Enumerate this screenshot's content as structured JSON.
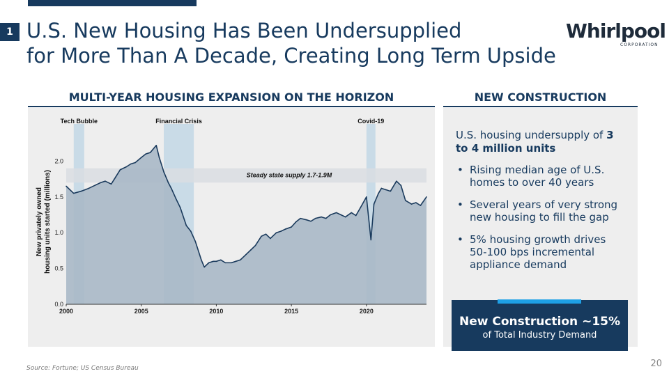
{
  "slide": {
    "number": "1",
    "title_line1": "U.S. New Housing Has Been Undersupplied",
    "title_line2": "for More Than A Decade, Creating Long Term Upside",
    "logo_text": "Whirlpool",
    "logo_subtext": "CORPORATION",
    "page_number": "20",
    "source": "Source: Fortune; US Census Bureau"
  },
  "left_panel": {
    "heading": "MULTI-YEAR HOUSING EXPANSION ON THE HORIZON"
  },
  "right_panel": {
    "heading": "NEW CONSTRUCTION",
    "intro_prefix": "U.S. housing undersupply of ",
    "intro_bold": "3 to 4 million units",
    "bullets": [
      "Rising median age of U.S. homes to over 40 years",
      "Several years of very strong new housing to fill the gap",
      "5% housing growth drives 50-100 bps incremental appliance demand"
    ],
    "callout_main": "New Construction ~15%",
    "callout_sub": "of Total Industry Demand"
  },
  "colors": {
    "navy": "#173a5e",
    "accent": "#1ea0e6",
    "area_fill": "#a9b8c7",
    "line": "#1a3a5c",
    "band": "#c9dbe7"
  },
  "chart_data": {
    "type": "area",
    "title": "MULTI-YEAR HOUSING EXPANSION ON THE HORIZON",
    "xlabel": "",
    "ylabel": "New privately owned housing units started (millions)",
    "xlim": [
      2000,
      2024
    ],
    "ylim": [
      0.0,
      2.5
    ],
    "xticks": [
      "2000",
      "2005",
      "2010",
      "2015",
      "2020"
    ],
    "yticks": [
      "0.0",
      "0.5",
      "1.0",
      "1.5",
      "2.0"
    ],
    "shaded_periods": [
      {
        "label": "Tech Bubble",
        "start": 2000.5,
        "end": 2001.2
      },
      {
        "label": "Financial Crisis",
        "start": 2006.5,
        "end": 2008.5
      },
      {
        "label": "Covid-19",
        "start": 2020.0,
        "end": 2020.6
      }
    ],
    "reference_band": {
      "label": "Steady state supply 1.7-1.9M",
      "low": 1.7,
      "high": 1.9
    },
    "series": [
      {
        "name": "Housing starts",
        "x": [
          2000.0,
          2000.5,
          2001.0,
          2001.5,
          2002.0,
          2002.3,
          2002.6,
          2003.0,
          2003.3,
          2003.6,
          2004.0,
          2004.3,
          2004.6,
          2005.0,
          2005.3,
          2005.6,
          2006.0,
          2006.2,
          2006.5,
          2006.8,
          2007.0,
          2007.3,
          2007.6,
          2008.0,
          2008.3,
          2008.6,
          2009.0,
          2009.2,
          2009.5,
          2009.8,
          2010.0,
          2010.3,
          2010.6,
          2011.0,
          2011.3,
          2011.6,
          2012.0,
          2012.3,
          2012.6,
          2013.0,
          2013.3,
          2013.6,
          2014.0,
          2014.3,
          2014.6,
          2015.0,
          2015.3,
          2015.6,
          2016.0,
          2016.3,
          2016.6,
          2017.0,
          2017.3,
          2017.6,
          2018.0,
          2018.3,
          2018.6,
          2019.0,
          2019.3,
          2019.6,
          2020.0,
          2020.3,
          2020.5,
          2020.8,
          2021.0,
          2021.3,
          2021.6,
          2022.0,
          2022.3,
          2022.6,
          2023.0,
          2023.3,
          2023.6,
          2024.0
        ],
        "values": [
          1.65,
          1.55,
          1.58,
          1.62,
          1.67,
          1.7,
          1.72,
          1.68,
          1.78,
          1.88,
          1.92,
          1.96,
          1.98,
          2.05,
          2.1,
          2.12,
          2.22,
          2.05,
          1.85,
          1.7,
          1.62,
          1.48,
          1.35,
          1.1,
          1.02,
          0.88,
          0.62,
          0.52,
          0.58,
          0.6,
          0.6,
          0.62,
          0.58,
          0.58,
          0.6,
          0.62,
          0.7,
          0.76,
          0.82,
          0.95,
          0.98,
          0.92,
          1.0,
          1.02,
          1.05,
          1.08,
          1.15,
          1.2,
          1.18,
          1.16,
          1.2,
          1.22,
          1.2,
          1.25,
          1.28,
          1.25,
          1.22,
          1.28,
          1.24,
          1.35,
          1.5,
          0.9,
          1.4,
          1.55,
          1.62,
          1.6,
          1.58,
          1.72,
          1.66,
          1.45,
          1.4,
          1.42,
          1.38,
          1.5
        ]
      }
    ]
  }
}
